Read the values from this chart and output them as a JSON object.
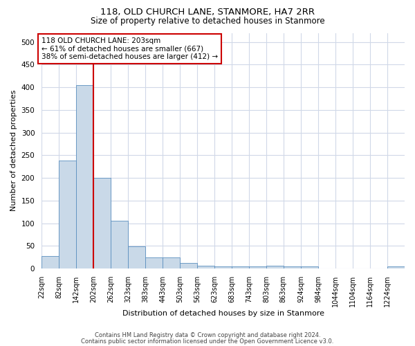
{
  "title": "118, OLD CHURCH LANE, STANMORE, HA7 2RR",
  "subtitle": "Size of property relative to detached houses in Stanmore",
  "xlabel": "Distribution of detached houses by size in Stanmore",
  "ylabel": "Number of detached properties",
  "bar_color": "#c9d9e8",
  "bar_edge_color": "#5a8fbf",
  "bin_edges": [
    22,
    82,
    142,
    202,
    262,
    323,
    383,
    443,
    503,
    563,
    623,
    683,
    743,
    803,
    863,
    924,
    984,
    1044,
    1104,
    1164,
    1224,
    1284
  ],
  "bin_labels": [
    "22sqm",
    "82sqm",
    "142sqm",
    "202sqm",
    "262sqm",
    "323sqm",
    "383sqm",
    "443sqm",
    "503sqm",
    "563sqm",
    "623sqm",
    "683sqm",
    "743sqm",
    "803sqm",
    "863sqm",
    "924sqm",
    "984sqm",
    "1044sqm",
    "1104sqm",
    "1164sqm",
    "1224sqm"
  ],
  "bar_values": [
    28,
    238,
    405,
    200,
    106,
    49,
    25,
    25,
    12,
    7,
    5,
    5,
    5,
    7,
    5,
    5,
    0,
    0,
    0,
    0,
    5
  ],
  "ylim": [
    0,
    520
  ],
  "yticks": [
    0,
    50,
    100,
    150,
    200,
    250,
    300,
    350,
    400,
    450,
    500
  ],
  "property_line_x": 202,
  "annotation_text": "118 OLD CHURCH LANE: 203sqm\n← 61% of detached houses are smaller (667)\n38% of semi-detached houses are larger (412) →",
  "annotation_box_color": "#ffffff",
  "annotation_box_edge": "#cc0000",
  "red_line_color": "#cc0000",
  "footer_line1": "Contains HM Land Registry data © Crown copyright and database right 2024.",
  "footer_line2": "Contains public sector information licensed under the Open Government Licence v3.0.",
  "grid_color": "#d0d8e8",
  "background_color": "#ffffff",
  "title_fontsize": 9.5,
  "subtitle_fontsize": 8.5,
  "ylabel_fontsize": 8,
  "xlabel_fontsize": 8,
  "tick_fontsize": 7,
  "annotation_fontsize": 7.5,
  "footer_fontsize": 6
}
